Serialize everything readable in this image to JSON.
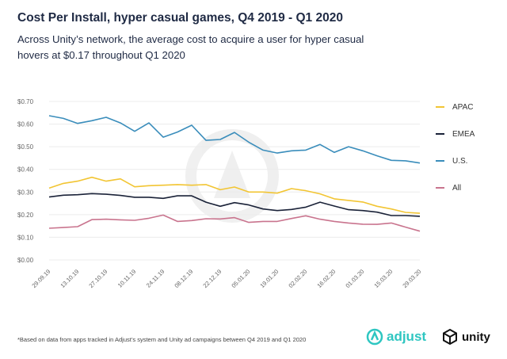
{
  "header": {
    "title": "Cost Per Install, hyper casual games, Q4 2019 - Q1 2020",
    "subtitle": "Across Unity’s network, the average cost to acquire a user for hyper casual hovers at $0.17 throughout Q1 2020"
  },
  "chart_data": {
    "type": "line",
    "y_ticks": [
      "$0.00",
      "$0.10",
      "$0.20",
      "$0.30",
      "$0.40",
      "$0.50",
      "$0.60",
      "$0.70"
    ],
    "ylim": [
      0,
      0.7
    ],
    "x_tick_labels": [
      "29.09.19",
      "13.10.19",
      "27.10.19",
      "10.11.19",
      "24.11.19",
      "08.12.19",
      "22.12.19",
      "05.01.20",
      "19.01.20",
      "02.02.20",
      "16.02.20",
      "01.03.20",
      "15.03.20",
      "29.03.20"
    ],
    "x_points": 27,
    "legend_position": "right",
    "series": [
      {
        "name": "APAC",
        "color": "#f2c533",
        "values": [
          0.317,
          0.338,
          0.348,
          0.365,
          0.348,
          0.358,
          0.323,
          0.328,
          0.33,
          0.333,
          0.33,
          0.333,
          0.31,
          0.322,
          0.3,
          0.3,
          0.295,
          0.315,
          0.306,
          0.292,
          0.27,
          0.263,
          0.256,
          0.237,
          0.225,
          0.21,
          0.206
        ]
      },
      {
        "name": "EMEA",
        "color": "#1a2238",
        "values": [
          0.278,
          0.286,
          0.288,
          0.293,
          0.29,
          0.285,
          0.277,
          0.277,
          0.272,
          0.283,
          0.283,
          0.255,
          0.237,
          0.253,
          0.243,
          0.225,
          0.218,
          0.223,
          0.233,
          0.255,
          0.238,
          0.222,
          0.218,
          0.211,
          0.196,
          0.196,
          0.193
        ]
      },
      {
        "name": "U.S.",
        "color": "#3a8dbb",
        "values": [
          0.637,
          0.625,
          0.603,
          0.615,
          0.63,
          0.605,
          0.568,
          0.605,
          0.542,
          0.565,
          0.595,
          0.528,
          0.532,
          0.563,
          0.52,
          0.485,
          0.472,
          0.482,
          0.485,
          0.51,
          0.475,
          0.5,
          0.482,
          0.46,
          0.44,
          0.438,
          0.428
        ]
      },
      {
        "name": "All",
        "color": "#c9748e",
        "values": [
          0.14,
          0.143,
          0.147,
          0.178,
          0.18,
          0.177,
          0.175,
          0.184,
          0.198,
          0.17,
          0.174,
          0.182,
          0.181,
          0.187,
          0.166,
          0.17,
          0.17,
          0.183,
          0.195,
          0.18,
          0.17,
          0.163,
          0.158,
          0.157,
          0.163,
          0.145,
          0.127
        ]
      }
    ]
  },
  "footnote": "*Based on data from apps tracked in Adjust’s system and Unity ad campaigns between Q4 2019 and Q1 2020",
  "logos": {
    "adjust": "adjust",
    "unity": "unity",
    "adjust_icon": "adjust-logo-icon",
    "unity_icon": "unity-logo-icon"
  }
}
